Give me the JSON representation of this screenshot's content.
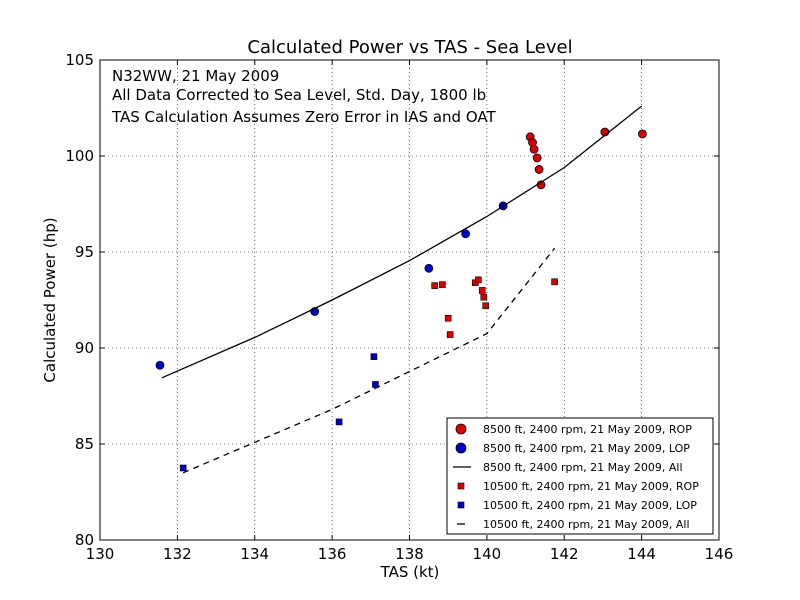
{
  "chart_data": {
    "type": "scatter",
    "title": "Calculated Power vs TAS - Sea Level",
    "xlabel": "TAS (kt)",
    "ylabel": "Calculated Power (hp)",
    "xlim": [
      130,
      146
    ],
    "ylim": [
      80,
      105
    ],
    "xticks": [
      "130",
      "132",
      "134",
      "136",
      "138",
      "140",
      "142",
      "144",
      "146"
    ],
    "yticks": [
      "80",
      "85",
      "90",
      "95",
      "100",
      "105"
    ],
    "grid": "on (dotted)",
    "legend_position": "lower-right",
    "annotations": [
      "N32WW, 21 May 2009",
      "All Data Corrected to Sea Level, Std. Day, 1800 lb",
      "TAS Calculation Assumes Zero Error in IAS and OAT"
    ],
    "series": [
      {
        "name": "8500 ft, 2400 rpm, 21 May 2009, ROP",
        "kind": "circle",
        "color": "#dd0000",
        "points": [
          [
            141.12,
            101.0
          ],
          [
            141.18,
            100.7
          ],
          [
            141.22,
            100.35
          ],
          [
            141.3,
            99.9
          ],
          [
            141.35,
            99.3
          ],
          [
            141.4,
            98.5
          ],
          [
            143.05,
            101.25
          ],
          [
            144.02,
            101.15
          ]
        ]
      },
      {
        "name": "8500 ft, 2400 rpm, 21 May 2009, LOP",
        "kind": "circle",
        "color": "#0000cc",
        "points": [
          [
            131.55,
            89.1
          ],
          [
            135.55,
            91.9
          ],
          [
            138.5,
            94.15
          ],
          [
            139.45,
            95.95
          ],
          [
            140.42,
            97.4
          ]
        ]
      },
      {
        "name": "8500 ft, 2400 rpm, 21 May 2009, All",
        "kind": "line",
        "dash": "solid",
        "color": "#000000",
        "points": [
          [
            131.6,
            88.45
          ],
          [
            134.0,
            90.55
          ],
          [
            136.0,
            92.5
          ],
          [
            138.0,
            94.55
          ],
          [
            140.0,
            96.85
          ],
          [
            142.0,
            99.4
          ],
          [
            144.0,
            102.6
          ]
        ]
      },
      {
        "name": "10500 ft, 2400 rpm, 21 May 2009, ROP",
        "kind": "square",
        "color": "#dd0000",
        "points": [
          [
            138.65,
            93.25
          ],
          [
            138.85,
            93.3
          ],
          [
            139.0,
            91.55
          ],
          [
            139.05,
            90.7
          ],
          [
            139.7,
            93.4
          ],
          [
            139.78,
            93.55
          ],
          [
            139.88,
            93.0
          ],
          [
            139.92,
            92.65
          ],
          [
            139.97,
            92.2
          ],
          [
            141.75,
            93.45
          ]
        ]
      },
      {
        "name": "10500 ft, 2400 rpm, 21 May 2009, LOP",
        "kind": "square",
        "color": "#0000cc",
        "points": [
          [
            132.15,
            83.75
          ],
          [
            136.18,
            86.15
          ],
          [
            137.08,
            89.55
          ],
          [
            137.12,
            88.1
          ]
        ]
      },
      {
        "name": "10500 ft, 2400 rpm, 21 May 2009, All",
        "kind": "line",
        "dash": "dashed",
        "color": "#000000",
        "points": [
          [
            132.15,
            83.5
          ],
          [
            136.0,
            86.8
          ],
          [
            140.0,
            90.75
          ],
          [
            141.75,
            95.2
          ]
        ]
      }
    ]
  }
}
